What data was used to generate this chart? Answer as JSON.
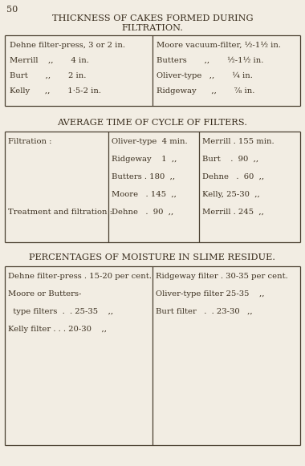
{
  "bg_color": "#f2ede3",
  "border_color": "#4a3f30",
  "text_color": "#3a2e1e",
  "page_number": "50",
  "section1_title_line1": "THICKNESS OF CAKES FORMED DURING",
  "section1_title_line2": "FILTRATION.",
  "section1_left": [
    "Dehne filter-press, 3 or 2 in.",
    "Merrill    ,,       4 in.",
    "Burt       ,,       2 in.",
    "Kelly      ,,       1·5-2 in."
  ],
  "section1_right": [
    "Moore vacuum-filter, ½-1½ in.",
    "Butters       ,,       ½-1½ in.",
    "Oliver-type   ,,       ¼ in.",
    "Ridgeway      ,,       ⅞ in."
  ],
  "section2_title": "AVERAGE TIME OF CYCLE OF FILTERS.",
  "section2_col1_label": "Filtration :",
  "section2_col2": [
    "Oliver-type  4 min.",
    "Ridgeway    1  ,,",
    "Butters . 180  ,,",
    "Moore   . 145  ,,"
  ],
  "section2_col3": [
    "Merrill . 155 min.",
    "Burt    .  90  ,,",
    "Dehne   .  60  ,,",
    "Kelly, 25-30  ,,"
  ],
  "section2_col1_label2": "Treatment and filtration :",
  "section2_col2_last": "Dehne   .  90  ,,",
  "section2_col3_last": "Merrill . 245  ,,",
  "section3_title": "PERCENTAGES OF MOISTURE IN SLIME RESIDUE.",
  "section3_left": [
    "Dehne filter-press . 15-20 per cent.",
    "Moore or Butters-",
    "  type filters  .  . 25-35    ,,",
    "Kelly filter . . . 20-30    ,,"
  ],
  "section3_right": [
    "Ridgeway filter . 30-35 per cent.",
    "Oliver-type filter 25-35    ,,",
    "Burt filter   .  . 23-30   ,,"
  ],
  "fig_width": 3.8,
  "fig_height": 5.81,
  "dpi": 100
}
